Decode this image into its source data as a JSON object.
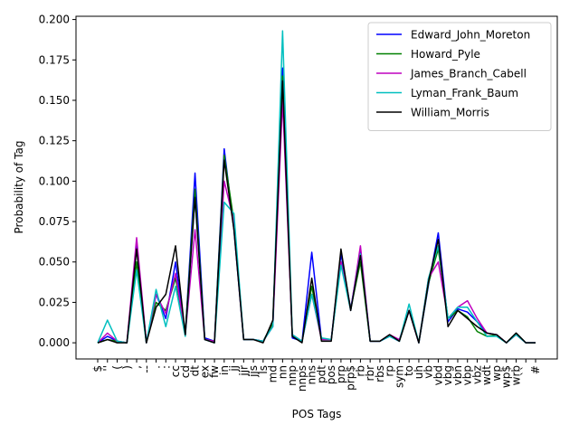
{
  "chart_data": {
    "type": "line",
    "title": "",
    "xlabel": "POS Tags",
    "ylabel": "Probability of Tag",
    "ylim": [
      -0.01,
      0.202
    ],
    "yticks": [
      "0.000",
      "0.025",
      "0.050",
      "0.075",
      "0.100",
      "0.125",
      "0.150",
      "0.175",
      "0.200"
    ],
    "grid": false,
    "legend": "top-right",
    "categories": [
      "$",
      "''",
      "(",
      ")",
      ",",
      "--",
      ".",
      ":",
      "cc",
      "cd",
      "dt",
      "ex",
      "fw",
      "in",
      "jj",
      "jjr",
      "jjs",
      "ls",
      "md",
      "nn",
      "nnp",
      "nnps",
      "nns",
      "pdt",
      "pos",
      "prp",
      "prp$",
      "rb",
      "rbr",
      "rbs",
      "rp",
      "sym",
      "to",
      "uh",
      "vb",
      "vbd",
      "vbg",
      "vbn",
      "vbp",
      "vbz",
      "wdt",
      "wp",
      "wp$",
      "wrb",
      "``",
      "#"
    ],
    "series": [
      {
        "name": "Edward_John_Moreton",
        "color": "#0000ff",
        "values": [
          0.0,
          0.004,
          0.001,
          0.0,
          0.06,
          0.0,
          0.03,
          0.015,
          0.05,
          0.005,
          0.105,
          0.003,
          0.001,
          0.12,
          0.07,
          0.002,
          0.002,
          0.001,
          0.012,
          0.17,
          0.003,
          0.001,
          0.056,
          0.002,
          0.002,
          0.055,
          0.021,
          0.057,
          0.001,
          0.001,
          0.004,
          0.001,
          0.02,
          0.0,
          0.036,
          0.068,
          0.013,
          0.021,
          0.019,
          0.013,
          0.006,
          0.005,
          0.0,
          0.006,
          0.0,
          0.0
        ]
      },
      {
        "name": "Howard_Pyle",
        "color": "#008000",
        "values": [
          0.0,
          0.002,
          0.001,
          0.0,
          0.05,
          0.0,
          0.025,
          0.02,
          0.04,
          0.006,
          0.095,
          0.002,
          0.001,
          0.116,
          0.075,
          0.002,
          0.002,
          0.001,
          0.012,
          0.165,
          0.004,
          0.001,
          0.035,
          0.002,
          0.002,
          0.05,
          0.021,
          0.05,
          0.001,
          0.001,
          0.005,
          0.001,
          0.02,
          0.0,
          0.037,
          0.058,
          0.015,
          0.02,
          0.016,
          0.007,
          0.004,
          0.005,
          0.0,
          0.006,
          0.0,
          0.0
        ]
      },
      {
        "name": "James_Branch_Cabell",
        "color": "#bf00bf",
        "values": [
          0.0,
          0.006,
          0.001,
          0.0,
          0.065,
          0.0,
          0.03,
          0.018,
          0.043,
          0.005,
          0.07,
          0.002,
          0.001,
          0.1,
          0.075,
          0.002,
          0.002,
          0.001,
          0.01,
          0.15,
          0.005,
          0.001,
          0.03,
          0.002,
          0.002,
          0.05,
          0.02,
          0.06,
          0.001,
          0.001,
          0.005,
          0.002,
          0.02,
          0.0,
          0.04,
          0.05,
          0.015,
          0.022,
          0.026,
          0.015,
          0.006,
          0.005,
          0.0,
          0.005,
          0.0,
          0.0
        ]
      },
      {
        "name": "Lyman_Frank_Baum",
        "color": "#00bfbf",
        "values": [
          0.0,
          0.014,
          0.001,
          0.0,
          0.045,
          0.0,
          0.033,
          0.01,
          0.035,
          0.004,
          0.09,
          0.002,
          0.0,
          0.087,
          0.08,
          0.002,
          0.002,
          0.001,
          0.01,
          0.193,
          0.005,
          0.001,
          0.03,
          0.003,
          0.002,
          0.048,
          0.02,
          0.055,
          0.001,
          0.001,
          0.004,
          0.001,
          0.024,
          0.0,
          0.04,
          0.06,
          0.015,
          0.022,
          0.022,
          0.013,
          0.004,
          0.004,
          0.0,
          0.005,
          0.0,
          0.0
        ]
      },
      {
        "name": "William_Morris",
        "color": "#000000",
        "values": [
          0.0,
          0.002,
          0.0,
          0.0,
          0.058,
          0.0,
          0.022,
          0.03,
          0.06,
          0.005,
          0.09,
          0.002,
          0.0,
          0.113,
          0.07,
          0.002,
          0.002,
          0.0,
          0.014,
          0.162,
          0.004,
          0.0,
          0.04,
          0.001,
          0.001,
          0.058,
          0.02,
          0.054,
          0.001,
          0.001,
          0.005,
          0.001,
          0.02,
          0.0,
          0.038,
          0.064,
          0.01,
          0.02,
          0.015,
          0.01,
          0.006,
          0.005,
          0.0,
          0.006,
          0.0,
          0.0
        ]
      }
    ]
  }
}
